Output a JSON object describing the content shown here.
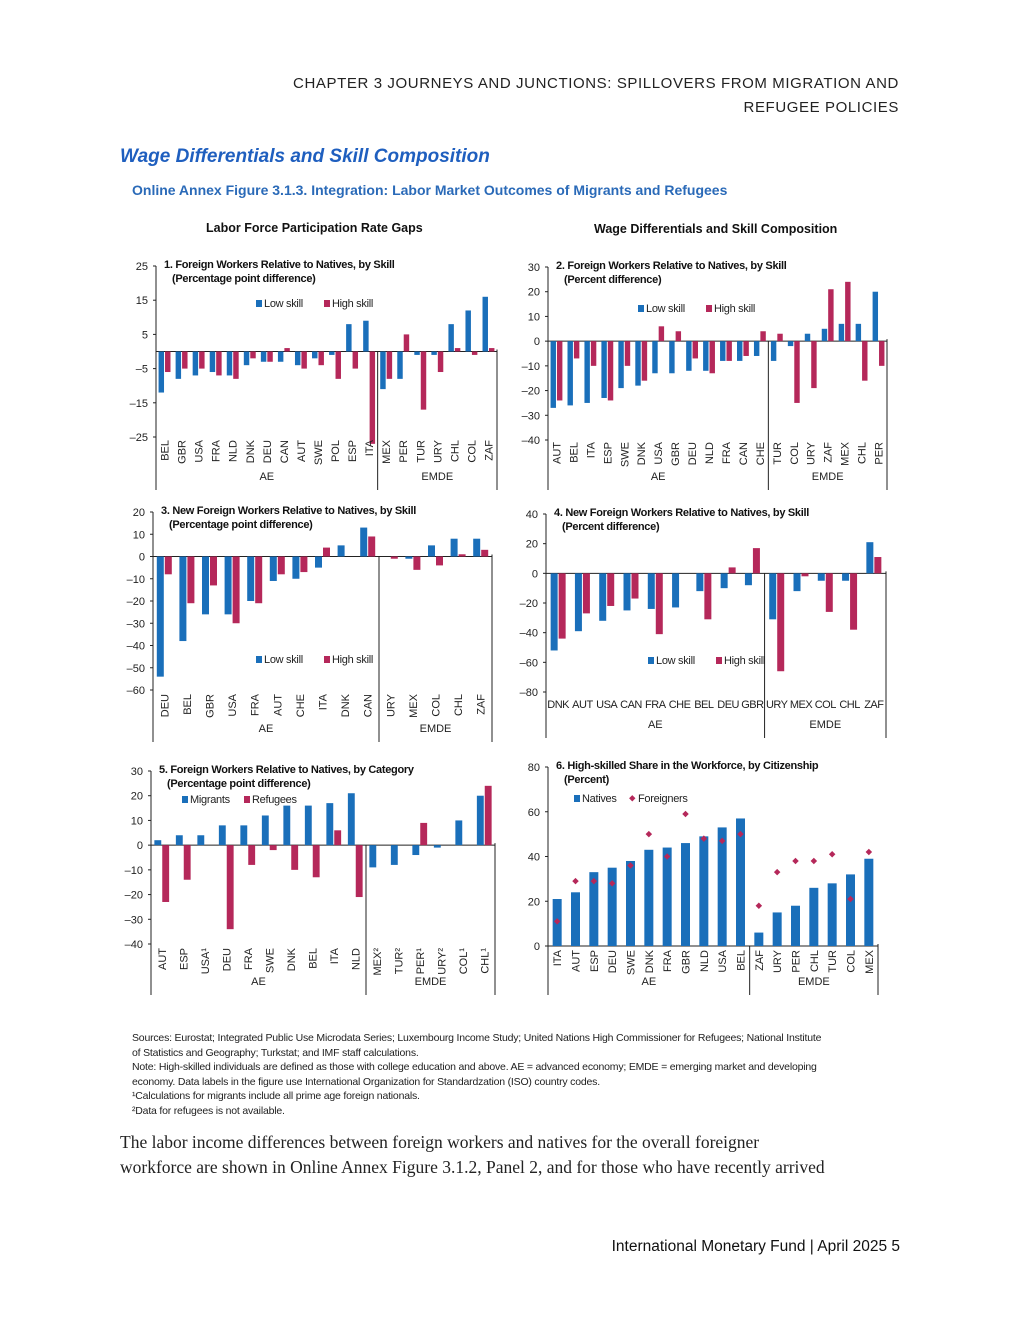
{
  "header": {
    "line1": "CHAPTER 3 JOURNEYS AND JUNCTIONS: SPILLOVERS FROM MIGRATION AND",
    "line2": "REFUGEE POLICIES"
  },
  "section_title": "Wage Differentials and Skill Composition",
  "figure_title": "Online Annex Figure 3.1.3.  Integration: Labor Market Outcomes of Migrants and Refugees",
  "group_titles": {
    "left": "Labor Force Participation Rate Gaps",
    "right": "Wage Differentials and Skill Composition"
  },
  "colors": {
    "series1": "#1a6fba",
    "series2": "#b5285a"
  },
  "chart_data": [
    {
      "type": "bar",
      "title": "1. Foreign Workers Relative to Natives, by Skill",
      "subtitle": "(Percentage point difference)",
      "categories": [
        "BEL",
        "GBR",
        "USA",
        "FRA",
        "NLD",
        "DNK",
        "DEU",
        "CAN",
        "AUT",
        "SWE",
        "POL",
        "ESP",
        "ITA",
        "MEX",
        "PER",
        "TUR",
        "URY",
        "CHL",
        "COL",
        "ZAF"
      ],
      "series": [
        {
          "name": "Low skill",
          "values": [
            -12,
            -8,
            -7,
            -6,
            -7,
            -4,
            -3,
            -3,
            -4,
            -2,
            -1,
            8,
            9,
            -11,
            -8,
            -1,
            -1,
            8,
            12,
            16
          ]
        },
        {
          "name": "High skill",
          "values": [
            -6,
            -5,
            -5,
            -7,
            -8,
            -2,
            -3,
            1,
            -5,
            -4,
            -8,
            -5,
            -27,
            -8,
            5,
            -17,
            -6,
            1,
            -1,
            1
          ]
        }
      ],
      "yticks": [
        25,
        15,
        5,
        -5,
        -15,
        -25
      ],
      "ylim": [
        -25,
        25
      ],
      "groups": [
        {
          "label": "AE",
          "count": 13
        },
        {
          "label": "EMDE",
          "count": 7
        }
      ]
    },
    {
      "type": "bar",
      "title": "2. Foreign Workers Relative to Natives, by Skill",
      "subtitle": "(Percent difference)",
      "categories": [
        "AUT",
        "BEL",
        "ITA",
        "ESP",
        "SWE",
        "DNK",
        "USA",
        "GBR",
        "DEU",
        "NLD",
        "FRA",
        "CAN",
        "CHE",
        "TUR",
        "COL",
        "URY",
        "ZAF",
        "MEX",
        "CHL",
        "PER"
      ],
      "series": [
        {
          "name": "Low skill",
          "values": [
            -27,
            -26,
            -25,
            -23,
            -19,
            -18,
            -13,
            -13,
            -12,
            -12,
            -8,
            -8,
            -6,
            -8,
            -2,
            3,
            5,
            7,
            7,
            20
          ]
        },
        {
          "name": "High skill",
          "values": [
            -24,
            -7,
            -10,
            -24,
            -10,
            -16,
            6,
            4,
            -7,
            -13,
            -8,
            -6,
            4,
            3,
            -25,
            -19,
            21,
            24,
            -16,
            -10
          ]
        }
      ],
      "yticks": [
        30,
        20,
        10,
        0,
        -10,
        -20,
        -30,
        -40
      ],
      "ylim": [
        -40,
        30
      ],
      "groups": [
        {
          "label": "AE",
          "count": 13
        },
        {
          "label": "EMDE",
          "count": 7
        }
      ]
    },
    {
      "type": "bar",
      "title": "3. New Foreign Workers Relative to Natives, by Skill",
      "subtitle": "(Percentage point difference)",
      "categories": [
        "DEU",
        "BEL",
        "GBR",
        "USA",
        "FRA",
        "AUT",
        "CHE",
        "ITA",
        "DNK",
        "CAN",
        "URY",
        "MEX",
        "COL",
        "CHL",
        "ZAF"
      ],
      "series": [
        {
          "name": "Low skill",
          "values": [
            -54,
            -38,
            -26,
            -26,
            -20,
            -11,
            -10,
            -5,
            5,
            13,
            0,
            -1,
            5,
            8,
            8
          ]
        },
        {
          "name": "High skill",
          "values": [
            -8,
            -21,
            -13,
            -30,
            -21,
            -8,
            -7,
            4,
            0,
            9,
            -1,
            -6,
            -4,
            1,
            3
          ]
        }
      ],
      "yticks": [
        20,
        10,
        0,
        -10,
        -20,
        -30,
        -40,
        -50,
        -60
      ],
      "ylim": [
        -60,
        20
      ],
      "groups": [
        {
          "label": "AE",
          "count": 10
        },
        {
          "label": "EMDE",
          "count": 5
        }
      ]
    },
    {
      "type": "bar",
      "title": "4. New Foreign Workers Relative to Natives, by Skill",
      "subtitle": "(Percent difference)",
      "categories": [
        "DNK",
        "AUT",
        "USA",
        "CAN",
        "FRA",
        "CHE",
        "BEL",
        "DEU",
        "GBR",
        "URY",
        "MEX",
        "COL",
        "CHL",
        "ZAF"
      ],
      "series": [
        {
          "name": "Low skill",
          "values": [
            -52,
            -39,
            -32,
            -25,
            -24,
            -23,
            -12,
            -10,
            -8,
            -31,
            -12,
            -5,
            -5,
            21
          ]
        },
        {
          "name": "High skill",
          "values": [
            -44,
            -27,
            -22,
            -17,
            -41,
            0,
            -31,
            4,
            17,
            -66,
            -2,
            -26,
            -38,
            11
          ]
        }
      ],
      "yticks": [
        40,
        20,
        0,
        -20,
        -40,
        -60,
        -80
      ],
      "ylim": [
        -80,
        40
      ],
      "groups": [
        {
          "label": "AE",
          "count": 9
        },
        {
          "label": "EMDE",
          "count": 5
        }
      ]
    },
    {
      "type": "bar",
      "title": "5. Foreign Workers Relative to Natives, by Category",
      "subtitle": "(Percentage point difference)",
      "categories": [
        "AUT",
        "ESP",
        "USA¹",
        "DEU",
        "FRA",
        "SWE",
        "DNK",
        "BEL",
        "ITA",
        "NLD",
        "MEX²",
        "TUR²",
        "PER¹",
        "URY²",
        "COL¹",
        "CHL¹"
      ],
      "series": [
        {
          "name": "Migrants",
          "values": [
            2,
            4,
            4,
            8,
            8,
            12,
            16,
            16,
            17,
            21,
            -9,
            -8,
            -4,
            -1,
            10,
            20
          ]
        },
        {
          "name": "Refugees",
          "values": [
            -23,
            -14,
            0,
            -34,
            -8,
            -2,
            -10,
            -13,
            6,
            -21,
            0,
            0,
            9,
            0,
            0,
            24
          ]
        }
      ],
      "yticks": [
        30,
        20,
        10,
        0,
        -10,
        -20,
        -30,
        -40
      ],
      "ylim": [
        -40,
        30
      ],
      "groups": [
        {
          "label": "AE",
          "count": 10
        },
        {
          "label": "EMDE",
          "count": 6
        }
      ]
    },
    {
      "type": "bar+scatter",
      "title": "6. High-skilled Share in the Workforce, by Citizenship",
      "subtitle": "(Percent)",
      "categories": [
        "ITA",
        "AUT",
        "ESP",
        "DEU",
        "SWE",
        "DNK",
        "FRA",
        "GBR",
        "NLD",
        "USA",
        "BEL",
        "ZAF",
        "URY",
        "PER",
        "CHL",
        "TUR",
        "COL",
        "MEX"
      ],
      "series": [
        {
          "name": "Natives",
          "values": [
            21,
            24,
            33,
            35,
            38,
            43,
            44,
            46,
            49,
            53,
            57,
            6,
            15,
            18,
            26,
            28,
            32,
            39
          ]
        },
        {
          "name": "Foreigners",
          "values": [
            11,
            29,
            29,
            28,
            36,
            50,
            40,
            59,
            48,
            47,
            50,
            18,
            33,
            38,
            38,
            41,
            21,
            42
          ]
        }
      ],
      "yticks": [
        80,
        60,
        40,
        20,
        0
      ],
      "ylim": [
        0,
        80
      ],
      "groups": [
        {
          "label": "AE",
          "count": 11
        },
        {
          "label": "EMDE",
          "count": 7
        }
      ]
    }
  ],
  "notes": [
    "Sources: Eurostat; Integrated Public Use Microdata Series; Luxembourg Income Study; United Nations High Commissioner for Refugees; National Institute",
    "of Statistics and Geography; Turkstat; and IMF staff calculations.",
    "Note: High-skilled individuals are defined as those with college education and above. AE = advanced economy; EMDE = emerging market and developing",
    "economy. Data labels in the figure use International Organization for Standardzation (ISO) country codes.",
    "¹Calculations for migrants include all prime age foreign nationals.",
    "²Data for refugees is not available."
  ],
  "body_text": [
    " The labor income differences between foreign workers and natives for the overall foreigner",
    "workforce are shown in Online Annex Figure 3.1.2, Panel 2, and for those who have recently arrived"
  ],
  "footer": "International Monetary Fund | April 2025 5"
}
